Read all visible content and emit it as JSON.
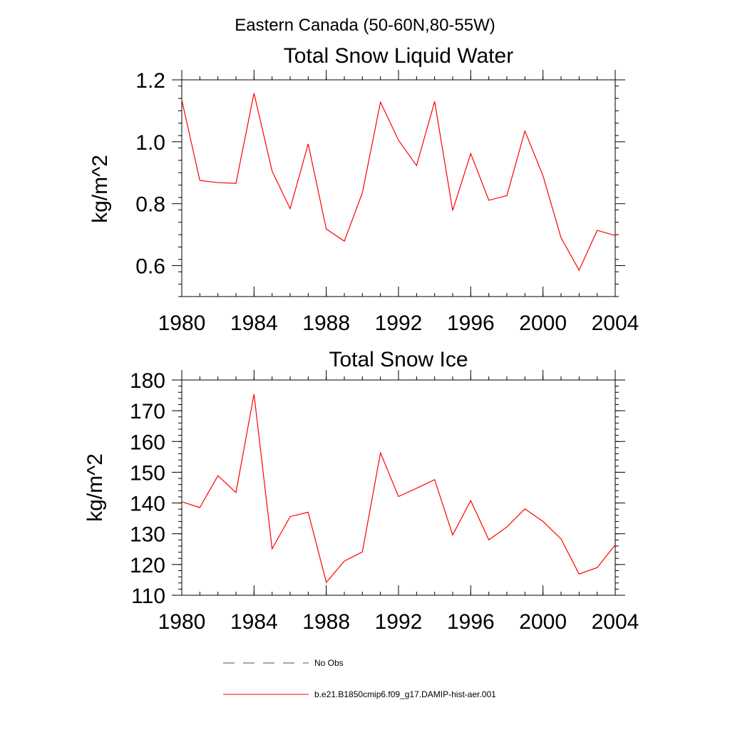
{
  "figure_title": "Eastern Canada (50-60N,80-55W)",
  "chart_data": [
    {
      "type": "line",
      "title": "Total Snow Liquid Water",
      "xlabel": "",
      "ylabel": "kg/m^2",
      "xlim": [
        1980,
        2004
      ],
      "ylim": [
        0.5,
        1.2
      ],
      "x_ticks": [
        1980,
        1984,
        1988,
        1992,
        1996,
        2000,
        2004
      ],
      "y_ticks": [
        0.6,
        0.8,
        1.0,
        1.2
      ],
      "y_tick_labels": [
        "0.6",
        "0.8",
        "1.0",
        "1.2"
      ],
      "grid": false,
      "series": [
        {
          "name": "b.e21.B1850cmip6.f09_g17.DAMIP-hist-aer.001",
          "color": "#ff0000",
          "x": [
            1980,
            1981,
            1982,
            1983,
            1984,
            1985,
            1986,
            1987,
            1988,
            1989,
            1990,
            1991,
            1992,
            1993,
            1994,
            1995,
            1996,
            1997,
            1998,
            1999,
            2000,
            2001,
            2002,
            2003,
            2004
          ],
          "y": [
            1.135,
            0.875,
            0.868,
            0.866,
            1.157,
            0.905,
            0.784,
            0.993,
            0.718,
            0.679,
            0.835,
            1.128,
            1.005,
            0.923,
            1.13,
            0.778,
            0.962,
            0.811,
            0.826,
            1.035,
            0.89,
            0.69,
            0.585,
            0.714,
            0.697
          ]
        }
      ]
    },
    {
      "type": "line",
      "title": "Total Snow Ice",
      "xlabel": "",
      "ylabel": "kg/m^2",
      "xlim": [
        1980,
        2004
      ],
      "ylim": [
        110,
        180
      ],
      "x_ticks": [
        1980,
        1984,
        1988,
        1992,
        1996,
        2000,
        2004
      ],
      "y_ticks": [
        110,
        120,
        130,
        140,
        150,
        160,
        170,
        180
      ],
      "y_tick_labels": [
        "110",
        "120",
        "130",
        "140",
        "150",
        "160",
        "170",
        "180"
      ],
      "grid": false,
      "series": [
        {
          "name": "b.e21.B1850cmip6.f09_g17.DAMIP-hist-aer.001",
          "color": "#ff0000",
          "x": [
            1980,
            1981,
            1982,
            1983,
            1984,
            1985,
            1986,
            1987,
            1988,
            1989,
            1990,
            1991,
            1992,
            1993,
            1994,
            1995,
            1996,
            1997,
            1998,
            1999,
            2000,
            2001,
            2002,
            2003,
            2004
          ],
          "y": [
            140.4,
            138.5,
            148.9,
            143.4,
            175.4,
            125.1,
            135.6,
            137.0,
            114.2,
            121.1,
            124.1,
            156.3,
            142.1,
            144.8,
            147.6,
            129.6,
            140.8,
            128.0,
            132.2,
            138.1,
            134.0,
            128.3,
            116.9,
            119.0,
            126.4
          ]
        }
      ]
    }
  ],
  "legend": [
    {
      "label": "No Obs",
      "color": "#4a4a7a",
      "style": "dashed"
    },
    {
      "label": "b.e21.B1850cmip6.f09_g17.DAMIP-hist-aer.001",
      "color": "#ff0000",
      "style": "solid"
    }
  ]
}
